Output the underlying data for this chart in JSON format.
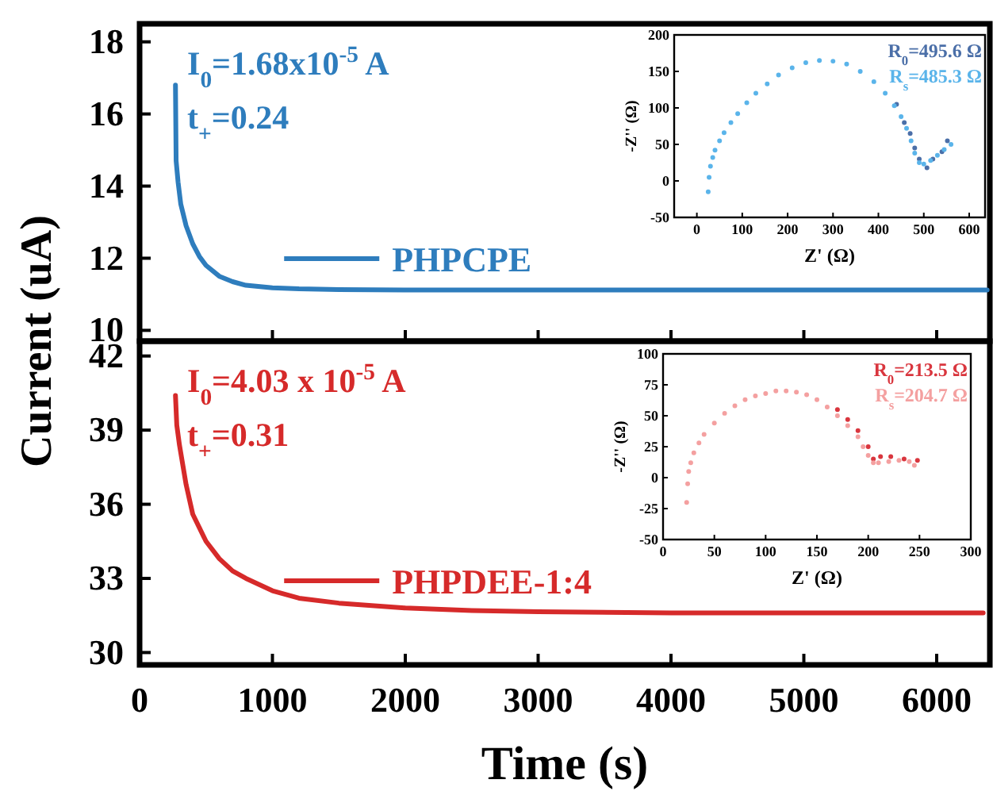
{
  "chart_data": [
    {
      "type": "line",
      "ylabel": "Current (uA)",
      "xlim": [
        0,
        6400
      ],
      "xticks": [
        0,
        1000,
        2000,
        3000,
        4000,
        5000,
        6000
      ],
      "ylim": [
        9.7,
        18.5
      ],
      "yticks": [
        10,
        12,
        14,
        16,
        18
      ],
      "tick_labels": "y",
      "legend": "bottom left",
      "annotations": [
        "I$_{0}$=1.68x10$^{-5}$ A",
        "t$_{+}$=0.24"
      ],
      "x": [
        270,
        275,
        290,
        310,
        350,
        400,
        450,
        500,
        600,
        700,
        800,
        1000,
        1200,
        1500,
        2000,
        3000,
        4000,
        5000,
        6000,
        6380
      ],
      "series": [
        {
          "name": "PHPCPE",
          "color": "#2e7dbd",
          "values": [
            16.8,
            14.7,
            14.1,
            13.5,
            12.9,
            12.4,
            12.05,
            11.8,
            11.5,
            11.35,
            11.25,
            11.18,
            11.15,
            11.13,
            11.12,
            11.12,
            11.12,
            11.12,
            11.12,
            11.12
          ]
        }
      ]
    },
    {
      "type": "scatter",
      "xlabel": "Z' (Ω)",
      "ylabel": "-Z'' (Ω)",
      "xlim": [
        -50,
        635
      ],
      "xticks": [
        0,
        100,
        200,
        300,
        400,
        500,
        600
      ],
      "ylim": [
        -50,
        200
      ],
      "yticks": [
        -50,
        0,
        50,
        100,
        150,
        200
      ],
      "marker": "circle",
      "legend": "top right",
      "series": [
        {
          "name": "R$_{0}$=495.6 Ω",
          "color": "#4b6fa8",
          "x": [
            440,
            457,
            470,
            480,
            490,
            507,
            520,
            540,
            552
          ],
          "values": [
            105,
            80,
            65,
            45,
            30,
            18,
            30,
            40,
            55
          ]
        },
        {
          "name": "R$_{s}$=485.3 Ω",
          "color": "#5ab4ea",
          "x": [
            25,
            27,
            30,
            35,
            40,
            50,
            60,
            75,
            90,
            110,
            130,
            155,
            180,
            210,
            240,
            270,
            300,
            330,
            360,
            390,
            415,
            435,
            450,
            462,
            472,
            480,
            490,
            500,
            515,
            530,
            545,
            560
          ],
          "values": [
            -15,
            5,
            20,
            32,
            42,
            55,
            66,
            80,
            92,
            107,
            120,
            133,
            145,
            155,
            162,
            165,
            164,
            160,
            150,
            136,
            120,
            103,
            88,
            72,
            55,
            38,
            25,
            23,
            28,
            35,
            43,
            50
          ]
        }
      ]
    },
    {
      "type": "line",
      "xlabel": "Time (s)",
      "xlim": [
        0,
        6400
      ],
      "xticks": [
        0,
        1000,
        2000,
        3000,
        4000,
        5000,
        6000
      ],
      "ylim": [
        29.5,
        42.6
      ],
      "yticks": [
        30,
        33,
        36,
        39,
        42
      ],
      "legend": "bottom left",
      "annotations": [
        "I$_{0}$=4.03 x 10$^{-5}$ A",
        "t$_{+}$=0.31"
      ],
      "x": [
        270,
        280,
        300,
        350,
        400,
        500,
        600,
        700,
        800,
        1000,
        1200,
        1500,
        2000,
        2500,
        3000,
        4000,
        5000,
        6000,
        6350
      ],
      "series": [
        {
          "name": "PHPDEE-1:4",
          "color": "#d62a2a",
          "values": [
            40.4,
            39.2,
            38.4,
            36.8,
            35.6,
            34.5,
            33.8,
            33.3,
            33.0,
            32.5,
            32.2,
            32.0,
            31.8,
            31.7,
            31.65,
            31.6,
            31.6,
            31.6,
            31.6
          ]
        }
      ]
    },
    {
      "type": "scatter",
      "xlabel": "Z' (Ω)",
      "ylabel": "-Z'' (Ω)",
      "xlim": [
        0,
        300
      ],
      "xticks": [
        0,
        50,
        100,
        150,
        200,
        250,
        300
      ],
      "ylim": [
        -50,
        100
      ],
      "yticks": [
        -50,
        -25,
        0,
        25,
        50,
        75,
        100
      ],
      "marker": "circle",
      "legend": "top right",
      "series": [
        {
          "name": "R$_{0}$=213.5 Ω",
          "color": "#d9363e",
          "x": [
            170,
            180,
            190,
            200,
            205,
            212,
            222,
            235,
            248
          ],
          "values": [
            55,
            47,
            38,
            25,
            15,
            17,
            17,
            15,
            14
          ]
        },
        {
          "name": "R$_{s}$=204.7 Ω",
          "color": "#f4a0a0",
          "x": [
            23,
            24,
            25,
            27,
            30,
            35,
            40,
            50,
            60,
            70,
            80,
            90,
            100,
            110,
            120,
            130,
            140,
            150,
            160,
            170,
            180,
            190,
            195,
            200,
            205,
            210,
            220,
            230,
            240,
            245
          ],
          "values": [
            -20,
            -5,
            5,
            12,
            20,
            28,
            35,
            44,
            52,
            58,
            63,
            66,
            68,
            70,
            70,
            69,
            67,
            63,
            57,
            50,
            42,
            33,
            25,
            18,
            12,
            12,
            13,
            14,
            13,
            10
          ]
        }
      ]
    }
  ]
}
